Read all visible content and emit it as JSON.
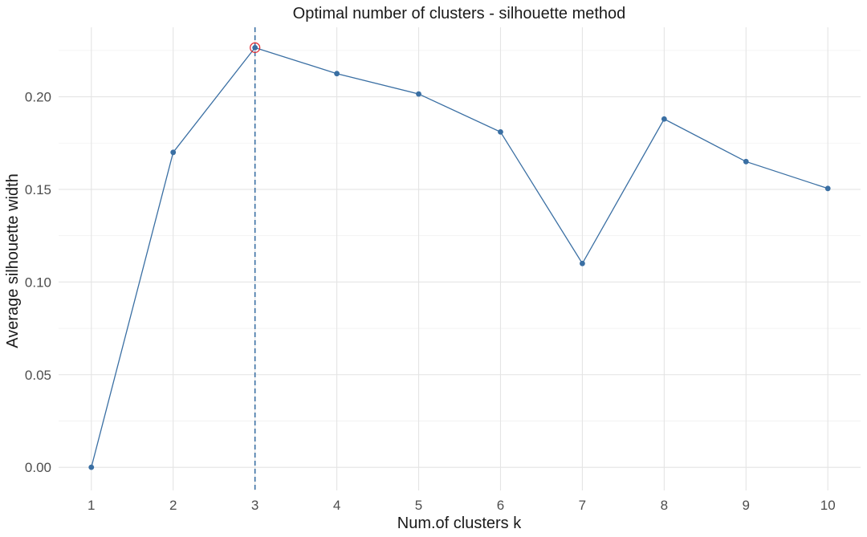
{
  "chart_data": {
    "type": "line",
    "title": "Optimal number of clusters - silhouette method",
    "xlabel": "Num.of clusters k",
    "ylabel": "Average silhouette width",
    "x": [
      1,
      2,
      3,
      4,
      5,
      6,
      7,
      8,
      9,
      10
    ],
    "x_tick_labels": [
      "1",
      "2",
      "3",
      "4",
      "5",
      "6",
      "7",
      "8",
      "9",
      "10"
    ],
    "series": [
      {
        "values": [
          0.0,
          0.17,
          0.2265,
          0.2125,
          0.2015,
          0.181,
          0.11,
          0.188,
          0.165,
          0.1505
        ],
        "color": "#3a6fa3"
      }
    ],
    "ylim": [
      -0.0125,
      0.2375
    ],
    "xlim": [
      0.6,
      10.4
    ],
    "y_ticks": [
      0.0,
      0.05,
      0.1,
      0.15,
      0.2
    ],
    "y_tick_labels": [
      "0.00",
      "0.05",
      "0.10",
      "0.15",
      "0.20"
    ],
    "optimal_k": 3,
    "optimal_line_color": "#3a6fa3",
    "optimal_marker_color": "#e0262b",
    "grid": true,
    "legend": "none"
  }
}
